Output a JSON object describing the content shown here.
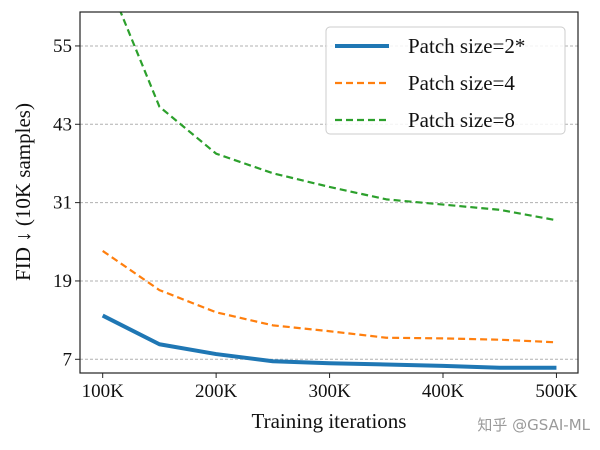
{
  "chart_data": {
    "type": "line",
    "title": "",
    "xlabel": "Training iterations",
    "ylabel": "FID ↓ (10K samples)",
    "x": [
      100,
      150,
      200,
      250,
      300,
      350,
      400,
      450,
      500
    ],
    "x_unit": "K",
    "xticks": [
      100,
      200,
      300,
      400,
      500
    ],
    "xtick_labels": [
      "100K",
      "200K",
      "300K",
      "400K",
      "500K"
    ],
    "yticks": [
      7,
      19,
      31,
      43,
      55
    ],
    "yticks_labels": [
      "7",
      "19",
      "31",
      "43",
      "55"
    ],
    "xlim": [
      80,
      519
    ],
    "ylim": [
      4.9,
      60.2
    ],
    "grid": "horizontal dashed",
    "legend_position": "top-right",
    "series": [
      {
        "name": "Patch size=2*",
        "color": "#1f77b4",
        "style": "solid",
        "values": [
          13.7,
          9.3,
          7.8,
          6.7,
          6.4,
          6.2,
          6.0,
          5.7,
          5.7
        ]
      },
      {
        "name": "Patch size=4",
        "color": "#ff7f0e",
        "style": "dashed",
        "values": [
          23.6,
          17.6,
          14.2,
          12.2,
          11.3,
          10.3,
          10.2,
          10.0,
          9.6
        ]
      },
      {
        "name": "Patch size=8",
        "color": "#2ca02c",
        "style": "dashed",
        "values": [
          66.9,
          45.7,
          38.5,
          35.5,
          33.4,
          31.5,
          30.7,
          29.9,
          28.3
        ]
      }
    ]
  },
  "watermark": "知乎 @GSAI-ML"
}
